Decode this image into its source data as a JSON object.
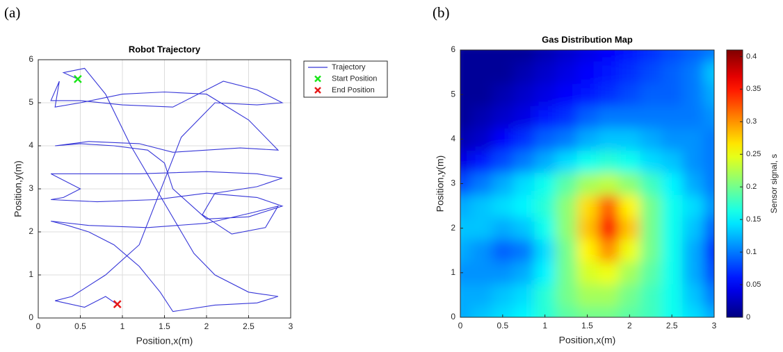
{
  "chart_data": [
    {
      "type": "line",
      "panel_label": "(a)",
      "title": "Robot Trajectory",
      "xlabel": "Position,x(m)",
      "ylabel": "Position,y(m)",
      "xlim": [
        0,
        3
      ],
      "ylim": [
        0,
        6
      ],
      "xticks": [
        0,
        0.5,
        1,
        1.5,
        2,
        2.5,
        3
      ],
      "yticks": [
        0,
        1,
        2,
        3,
        4,
        5,
        6
      ],
      "grid": true,
      "legend": "outside-right",
      "series": [
        {
          "name": "Trajectory",
          "color": "#3535d8",
          "x": [
            0.47,
            0.3,
            0.55,
            0.8,
            0.95,
            1.1,
            1.25,
            1.4,
            1.55,
            1.7,
            1.85,
            2.1,
            2.5,
            2.85,
            2.6,
            2.1,
            1.6,
            1.45,
            1.2,
            0.9,
            0.6,
            0.35,
            0.15,
            0.6,
            1.3,
            2.0,
            2.55,
            2.85,
            2.7,
            2.3,
            1.95,
            2.1,
            2.6,
            2.9,
            2.6,
            2.0,
            1.2,
            0.6,
            0.15,
            0.5,
            0.3,
            0.15,
            0.7,
            1.4,
            2.0,
            2.6,
            2.9,
            2.5,
            2.0,
            1.6,
            1.5,
            1.3,
            0.9,
            0.5,
            0.2,
            0.6,
            1.2,
            1.6,
            2.0,
            2.4,
            2.85,
            2.5,
            2.0,
            1.5,
            1.0,
            0.5,
            0.2,
            0.25,
            0.15,
            0.5,
            1.0,
            1.6,
            2.2,
            2.6,
            2.9,
            2.6,
            2.1,
            1.7,
            1.5,
            1.2,
            0.8,
            0.4,
            0.2,
            0.55,
            0.8,
            0.95
          ],
          "values": [
            5.55,
            5.7,
            5.8,
            5.2,
            4.6,
            4.0,
            3.5,
            3.0,
            2.5,
            2.0,
            1.5,
            1.0,
            0.6,
            0.5,
            0.35,
            0.3,
            0.15,
            0.6,
            1.2,
            1.7,
            2.0,
            2.15,
            2.25,
            2.15,
            2.1,
            2.2,
            2.45,
            2.6,
            2.1,
            1.95,
            2.4,
            2.9,
            3.05,
            3.25,
            3.35,
            3.4,
            3.35,
            3.35,
            3.35,
            3.0,
            2.8,
            2.75,
            2.7,
            2.75,
            2.9,
            2.8,
            2.6,
            2.35,
            2.3,
            3.0,
            3.6,
            3.9,
            4.0,
            4.05,
            4.0,
            4.1,
            4.05,
            3.85,
            3.9,
            3.95,
            3.9,
            4.6,
            5.2,
            5.25,
            5.2,
            5.0,
            4.9,
            5.5,
            5.05,
            5.05,
            4.95,
            4.9,
            5.5,
            5.3,
            5.0,
            4.95,
            5.0,
            4.2,
            3.2,
            1.7,
            1.0,
            0.5,
            0.4,
            0.25,
            0.5,
            0.3
          ]
        },
        {
          "name": "Start Position",
          "color": "#19e619",
          "marker": "x",
          "x": [
            0.47
          ],
          "values": [
            5.55
          ]
        },
        {
          "name": "End Position",
          "color": "#e61919",
          "marker": "x",
          "x": [
            0.94
          ],
          "values": [
            0.32
          ]
        }
      ]
    },
    {
      "type": "heatmap",
      "panel_label": "(b)",
      "title": "Gas Distribution Map",
      "xlabel": "Position,x(m)",
      "ylabel": "Position,y(m)",
      "xlim": [
        0,
        3
      ],
      "ylim": [
        0,
        6
      ],
      "xticks": [
        0,
        0.5,
        1,
        1.5,
        2,
        2.5,
        3
      ],
      "yticks": [
        0,
        1,
        2,
        3,
        4,
        5,
        6
      ],
      "x": [
        0,
        0.25,
        0.5,
        0.75,
        1,
        1.25,
        1.5,
        1.75,
        2,
        2.25,
        2.5,
        2.75,
        3
      ],
      "y": [
        0,
        0.5,
        1,
        1.5,
        2,
        2.5,
        3,
        3.5,
        4,
        4.5,
        5,
        5.5,
        6
      ],
      "z": [
        [
          0.12,
          0.13,
          0.14,
          0.15,
          0.17,
          0.19,
          0.2,
          0.2,
          0.19,
          0.18,
          0.16,
          0.14,
          0.12
        ],
        [
          0.12,
          0.12,
          0.13,
          0.14,
          0.17,
          0.2,
          0.22,
          0.22,
          0.2,
          0.18,
          0.16,
          0.13,
          0.1
        ],
        [
          0.11,
          0.11,
          0.11,
          0.12,
          0.15,
          0.2,
          0.24,
          0.25,
          0.22,
          0.19,
          0.16,
          0.12,
          0.08
        ],
        [
          0.12,
          0.11,
          0.09,
          0.1,
          0.14,
          0.2,
          0.26,
          0.3,
          0.25,
          0.2,
          0.16,
          0.12,
          0.07
        ],
        [
          0.13,
          0.13,
          0.12,
          0.13,
          0.16,
          0.21,
          0.28,
          0.36,
          0.28,
          0.2,
          0.16,
          0.13,
          0.09
        ],
        [
          0.12,
          0.13,
          0.14,
          0.15,
          0.17,
          0.21,
          0.27,
          0.32,
          0.26,
          0.2,
          0.16,
          0.14,
          0.11
        ],
        [
          0.08,
          0.1,
          0.12,
          0.14,
          0.16,
          0.19,
          0.22,
          0.23,
          0.21,
          0.18,
          0.15,
          0.12,
          0.1
        ],
        [
          0.04,
          0.06,
          0.08,
          0.1,
          0.12,
          0.14,
          0.16,
          0.17,
          0.16,
          0.14,
          0.13,
          0.11,
          0.1
        ],
        [
          0.02,
          0.03,
          0.05,
          0.07,
          0.09,
          0.1,
          0.12,
          0.13,
          0.13,
          0.12,
          0.11,
          0.11,
          0.1
        ],
        [
          0.01,
          0.02,
          0.03,
          0.04,
          0.06,
          0.07,
          0.09,
          0.1,
          0.1,
          0.1,
          0.1,
          0.1,
          0.11
        ],
        [
          0.01,
          0.01,
          0.02,
          0.03,
          0.04,
          0.05,
          0.06,
          0.07,
          0.08,
          0.09,
          0.09,
          0.1,
          0.12
        ],
        [
          0.01,
          0.01,
          0.01,
          0.02,
          0.03,
          0.04,
          0.05,
          0.06,
          0.07,
          0.08,
          0.09,
          0.1,
          0.13
        ],
        [
          0.01,
          0.01,
          0.01,
          0.01,
          0.02,
          0.03,
          0.04,
          0.05,
          0.06,
          0.07,
          0.08,
          0.09,
          0.1
        ]
      ],
      "colormap": "jet",
      "clim": [
        0,
        0.41
      ],
      "cticks": [
        0,
        0.05,
        0.1,
        0.15,
        0.2,
        0.25,
        0.3,
        0.35,
        0.4
      ],
      "colorbar_label": "Sensor signal, s"
    }
  ]
}
